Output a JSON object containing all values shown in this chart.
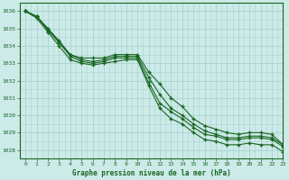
{
  "title": "Graphe pression niveau de la mer (hPa)",
  "bg_color": "#cceae8",
  "grid_color": "#aad4d0",
  "line_color": "#1a6622",
  "xlim": [
    -0.5,
    23
  ],
  "ylim": [
    1027.5,
    1036.5
  ],
  "yticks": [
    1028,
    1029,
    1030,
    1031,
    1032,
    1033,
    1034,
    1035,
    1036
  ],
  "xticks": [
    0,
    1,
    2,
    3,
    4,
    5,
    6,
    7,
    8,
    9,
    10,
    11,
    12,
    13,
    14,
    15,
    16,
    17,
    18,
    19,
    20,
    21,
    22,
    23
  ],
  "series": [
    [
      1036.0,
      1035.7,
      1035.0,
      1034.3,
      1033.5,
      1033.3,
      1033.3,
      1033.3,
      1033.5,
      1033.5,
      1033.5,
      1032.5,
      1031.8,
      1031.0,
      1030.5,
      1029.8,
      1029.4,
      1029.2,
      1029.0,
      1028.9,
      1029.0,
      1029.0,
      1028.9,
      1028.3
    ],
    [
      1036.0,
      1035.7,
      1035.0,
      1034.2,
      1033.5,
      1033.2,
      1033.1,
      1033.2,
      1033.4,
      1033.4,
      1033.4,
      1032.2,
      1031.2,
      1030.4,
      1030.0,
      1029.5,
      1029.1,
      1028.9,
      1028.7,
      1028.7,
      1028.8,
      1028.8,
      1028.7,
      1028.3
    ],
    [
      1036.0,
      1035.7,
      1034.9,
      1034.2,
      1033.4,
      1033.1,
      1033.0,
      1033.1,
      1033.3,
      1033.3,
      1033.3,
      1031.9,
      1030.7,
      1030.2,
      1029.8,
      1029.3,
      1028.9,
      1028.8,
      1028.6,
      1028.6,
      1028.7,
      1028.7,
      1028.6,
      1028.2
    ],
    [
      1036.0,
      1035.6,
      1034.8,
      1034.0,
      1033.2,
      1033.0,
      1032.9,
      1033.0,
      1033.1,
      1033.2,
      1033.2,
      1031.7,
      1030.4,
      1029.8,
      1029.5,
      1029.0,
      1028.6,
      1028.5,
      1028.3,
      1028.3,
      1028.4,
      1028.3,
      1028.3,
      1027.9
    ]
  ]
}
